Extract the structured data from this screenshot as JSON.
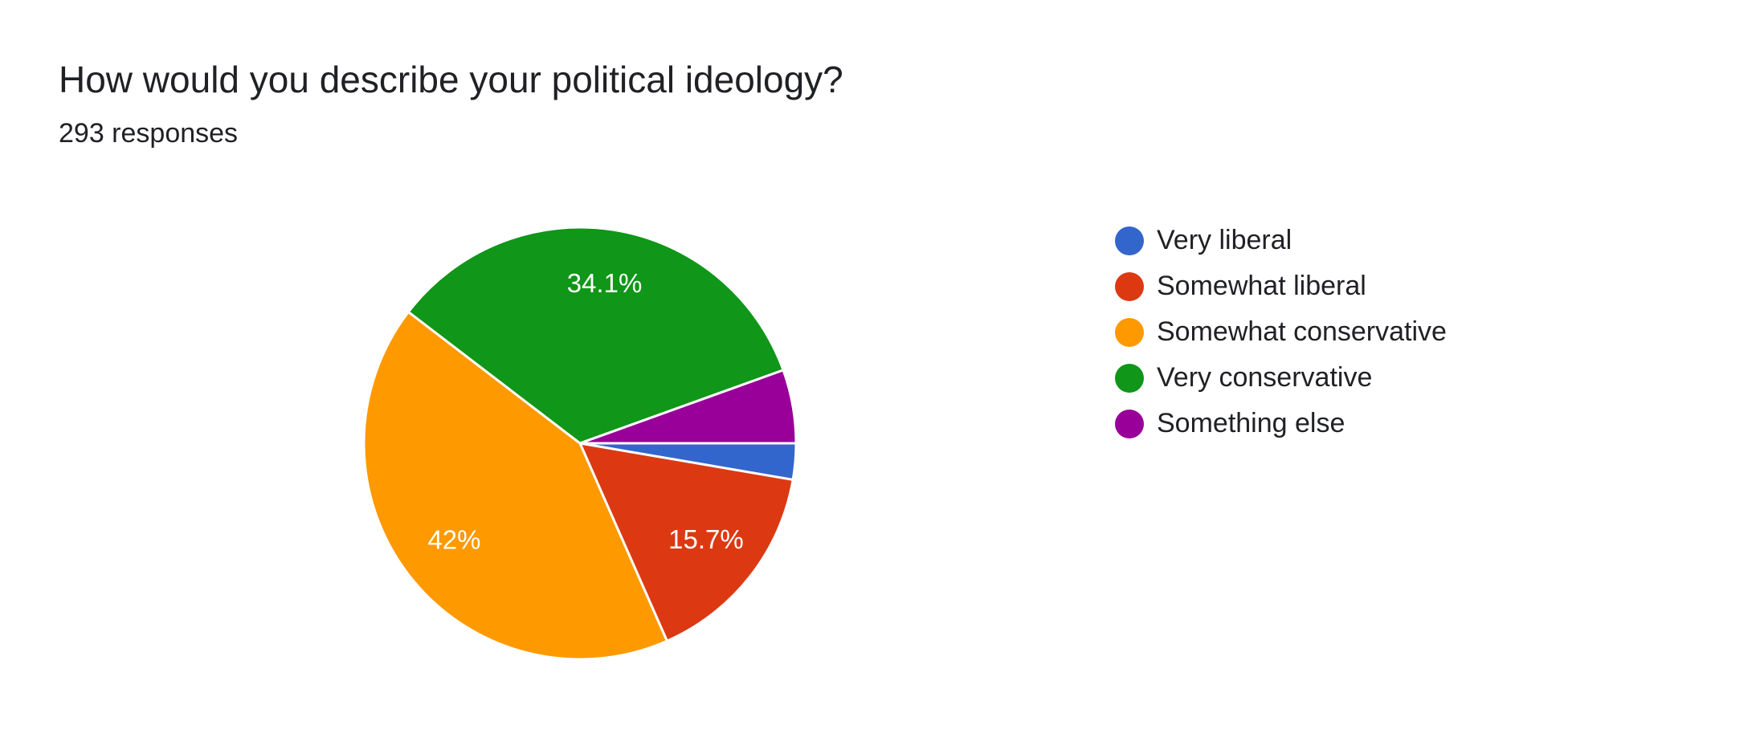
{
  "chart_data": {
    "type": "pie",
    "title": "How would you describe your political ideology?",
    "subtitle": "293 responses",
    "categories": [
      "Very liberal",
      "Somewhat liberal",
      "Somewhat conservative",
      "Very conservative",
      "Something else"
    ],
    "values": [
      2.7,
      15.7,
      42,
      34.1,
      5.5
    ],
    "value_labels": [
      null,
      "15.7%",
      "42%",
      "34.1%",
      null
    ],
    "colors": [
      "#3366cc",
      "#dc3912",
      "#ff9900",
      "#109618",
      "#990099"
    ],
    "legend": "right"
  }
}
